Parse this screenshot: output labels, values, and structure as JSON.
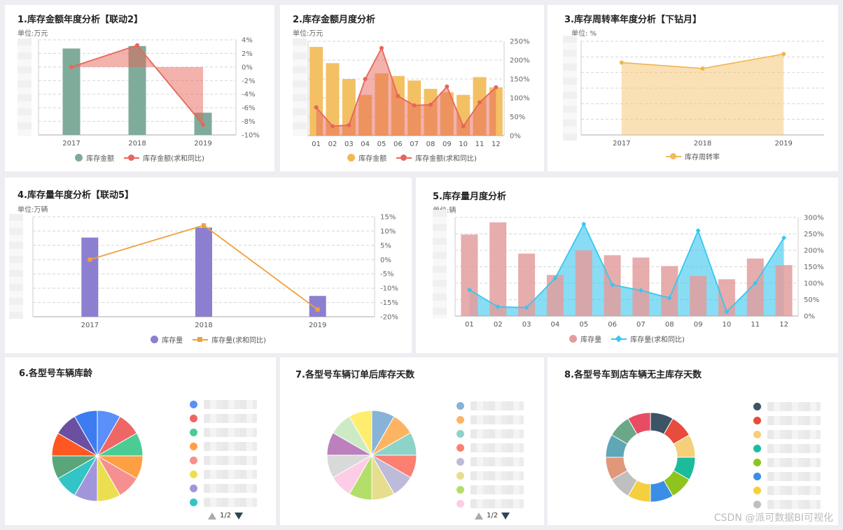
{
  "watermark": "CSDN @派可数据BI可视化",
  "panels": [
    {
      "title": "1.库存金额年度分析【联动2】",
      "unit": "单位:万元",
      "chart_data": {
        "type": "bar",
        "categories": [
          "2017",
          "2018",
          "2019"
        ],
        "series": [
          {
            "name": "库存金额",
            "type": "bar",
            "axis": "left",
            "values": [
              7000,
              7200,
              1800
            ],
            "color": "#7fab9b"
          },
          {
            "name": "库存金额(求和同比)",
            "type": "area-line",
            "axis": "right",
            "values": [
              0.0,
              3.2,
              -8.5
            ],
            "color": "#e8655a"
          }
        ],
        "ylim": [
          0,
          7700
        ],
        "y2lim": [
          -10,
          4
        ],
        "y2ticks": [
          "4%",
          "2%",
          "0%",
          "-2%",
          "-4%",
          "-6%",
          "-8%",
          "-10%"
        ],
        "grid": true,
        "legend": "bottom"
      }
    },
    {
      "title": "2.库存金额月度分析",
      "unit": "单位:万元",
      "chart_data": {
        "type": "bar",
        "categories": [
          "01",
          "02",
          "03",
          "04",
          "05",
          "06",
          "07",
          "08",
          "09",
          "10",
          "11",
          "12"
        ],
        "series": [
          {
            "name": "库存金额",
            "type": "bar",
            "axis": "left",
            "values": [
              235,
              192,
              150,
              108,
              165,
              158,
              146,
              124,
              115,
              108,
              155,
              128
            ],
            "color": "#f2b953"
          },
          {
            "name": "库存金额(求和同比)",
            "type": "area-line",
            "axis": "right",
            "values": [
              75,
              25,
              28,
              150,
              232,
              105,
              80,
              82,
              130,
              25,
              88,
              128
            ],
            "color": "#e8655a"
          }
        ],
        "ylim": [
          0,
          250
        ],
        "y2lim": [
          0,
          250
        ],
        "y2ticks": [
          "250%",
          "200%",
          "150%",
          "100%",
          "50%",
          "0%"
        ],
        "grid": true,
        "legend": "bottom"
      }
    },
    {
      "title": "3.库存周转率年度分析【下钻月】",
      "unit": "单位: %",
      "chart_data": {
        "type": "area",
        "categories": [
          "2017",
          "2018",
          "2019"
        ],
        "series": [
          {
            "name": "库存周转率",
            "values": [
              85,
              78,
              95
            ],
            "color": "#f5c46c"
          }
        ],
        "ylim": [
          0,
          110
        ],
        "grid": true,
        "legend": "bottom"
      }
    },
    {
      "title": "4.库存量年度分析【联动5】",
      "unit": "单位:万辆",
      "chart_data": {
        "type": "bar",
        "categories": [
          "2017",
          "2018",
          "2019"
        ],
        "series": [
          {
            "name": "库存量",
            "type": "bar",
            "axis": "left",
            "values": [
              95,
              107,
              25
            ],
            "color": "#8c7fd0"
          },
          {
            "name": "库存量(求和同比)",
            "type": "line",
            "axis": "right",
            "values": [
              0,
              12,
              -17.5
            ],
            "color": "#eda23a"
          }
        ],
        "ylim": [
          0,
          120
        ],
        "y2lim": [
          -20,
          15
        ],
        "y2ticks": [
          "15%",
          "10%",
          "5%",
          "0%",
          "-5%",
          "-10%",
          "-15%",
          "-20%"
        ],
        "grid": true,
        "legend": "bottom"
      }
    },
    {
      "title": "5.库存量月度分析",
      "unit": "单位:辆",
      "chart_data": {
        "type": "bar",
        "categories": [
          "01",
          "02",
          "03",
          "04",
          "05",
          "06",
          "07",
          "08",
          "09",
          "10",
          "11",
          "12"
        ],
        "series": [
          {
            "name": "库存量",
            "type": "bar",
            "axis": "left",
            "values": [
              248,
              285,
              190,
              125,
              200,
              185,
              178,
              152,
              122,
              112,
              175,
              155
            ],
            "color": "#e39d9e"
          },
          {
            "name": "库存量(求和同比)",
            "type": "area-line",
            "axis": "right",
            "values": [
              80,
              28,
              26,
              115,
              280,
              95,
              78,
              55,
              260,
              13,
              100,
              238
            ],
            "color": "#39c6ef"
          }
        ],
        "ylim": [
          0,
          300
        ],
        "y2lim": [
          0,
          300
        ],
        "y2ticks": [
          "300%",
          "250%",
          "200%",
          "150%",
          "100%",
          "50%",
          "0%"
        ],
        "grid": true,
        "legend": "bottom"
      }
    },
    {
      "title": "6.各型号车辆库龄",
      "page": "1/2",
      "chart_data": {
        "type": "pie",
        "donut": false,
        "values": [
          1,
          1,
          1,
          1,
          1,
          1,
          1,
          1,
          1,
          1,
          1,
          1
        ],
        "colors": [
          "#5b8ff9",
          "#ee6666",
          "#4ccc95",
          "#ff9f43",
          "#f68f8f",
          "#ecdf4f",
          "#a196dc",
          "#33c4c5",
          "#5aa67a",
          "#ff5722",
          "#6a4fa3",
          "#3d7cf0"
        ],
        "legend_colors": [
          "#5b8ff9",
          "#ee6666",
          "#4ccc95",
          "#ff9f43",
          "#f68f8f",
          "#ecdf4f",
          "#a196dc",
          "#33c4c5"
        ]
      }
    },
    {
      "title": "7.各型号车辆订单后库存天数",
      "page": "1/2",
      "chart_data": {
        "type": "pie",
        "donut": false,
        "values": [
          1,
          1,
          1,
          1,
          1,
          1,
          1,
          1,
          1,
          1,
          1,
          1
        ],
        "colors": [
          "#88b3d8",
          "#fdb462",
          "#8dd3c7",
          "#fb8072",
          "#bebada",
          "#e6de8e",
          "#b3de69",
          "#fccde5",
          "#d9d9d9",
          "#bc80bd",
          "#ccebc5",
          "#ffed6f"
        ],
        "legend_colors": [
          "#88b3d8",
          "#fdb462",
          "#8dd3c7",
          "#fb8072",
          "#bebada",
          "#e6de8e",
          "#b3de69",
          "#fccde5"
        ]
      }
    },
    {
      "title": "8.各型号车到店车辆无主库存天数",
      "chart_data": {
        "type": "pie",
        "donut": true,
        "values": [
          1,
          1,
          1,
          1,
          1,
          1,
          1,
          1,
          1,
          1,
          1,
          1
        ],
        "colors": [
          "#3d5366",
          "#e84c3d",
          "#f5cf7a",
          "#1abc9c",
          "#8fc41f",
          "#3a8ee6",
          "#f4d03f",
          "#bfbfbf",
          "#e0977a",
          "#5fa6b6",
          "#6aa889",
          "#e84c63"
        ],
        "legend_colors": [
          "#3d5366",
          "#e84c3d",
          "#f5cf7a",
          "#1abc9c",
          "#8fc41f",
          "#3a8ee6",
          "#f4d03f",
          "#bfbfbf"
        ]
      }
    }
  ]
}
